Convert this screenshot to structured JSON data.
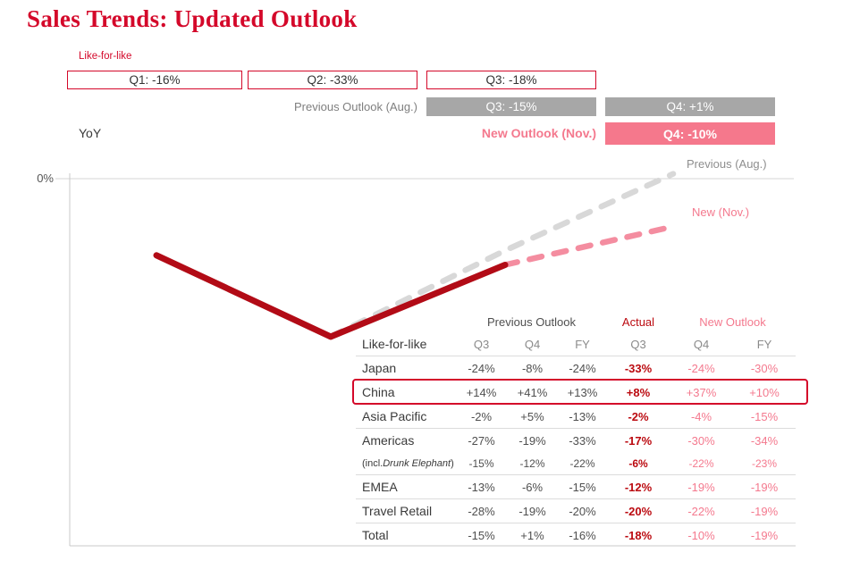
{
  "colors": {
    "brand_red": "#d4082a",
    "dark_red": "#bb0a10",
    "pink": "#f4798e",
    "pink_fill": "#f5788c",
    "gray_fill": "#a7a7a7",
    "gray_text": "#7f7f7f",
    "text_dark": "#3a3a3a",
    "text_mid": "#4f4f4f",
    "sep_gray": "#dcdcdc"
  },
  "slide": {
    "title": "Sales Trends: Updated Outlook"
  },
  "header": {
    "like_for_like_label": "Like-for-like",
    "yoy_label": "YoY",
    "actual_boxes": [
      {
        "label": "Q1: -16%"
      },
      {
        "label": "Q2: -33%"
      },
      {
        "label": "Q3: -18%"
      }
    ],
    "previous_outlook_label": "Previous Outlook (Aug.)",
    "previous_outlook_boxes": [
      {
        "label": "Q3: -15%"
      },
      {
        "label": "Q4: +1%"
      }
    ],
    "new_outlook_label": "New Outlook (Nov.)",
    "new_outlook_boxes": [
      {
        "label": "Q4: -10%"
      }
    ]
  },
  "chart": {
    "y_zero_label": "0%",
    "previous_annotation": "Previous (Aug.)",
    "new_annotation": "New (Nov.)"
  },
  "chart_data": {
    "type": "line",
    "x_categories": [
      "Q1",
      "Q2",
      "Q3",
      "Q4"
    ],
    "y_unit": "%",
    "y_axis": {
      "zero_label": "0%",
      "range": [
        -40,
        2
      ]
    },
    "legend_position": "inline-right",
    "grid": false,
    "series": [
      {
        "id": "previous-outlook",
        "name": "Previous (Aug.)",
        "dashed": true,
        "color": "#d8d8d8",
        "width": 6.5,
        "points": [
          {
            "x": "Q2",
            "value": -33
          },
          {
            "x": "Q3",
            "value": -15
          },
          {
            "x": "Q4",
            "value": 1
          }
        ]
      },
      {
        "id": "new-outlook",
        "name": "New (Nov.)",
        "dashed": true,
        "color": "#f48da0",
        "width": 6.5,
        "points": [
          {
            "x": "Q3",
            "value": -18
          },
          {
            "x": "Q4",
            "value": -10
          }
        ]
      },
      {
        "id": "actual",
        "name": "Actual like-for-like",
        "dashed": false,
        "color": "#b20b16",
        "width": 7,
        "points": [
          {
            "x": "Q1",
            "value": -16
          },
          {
            "x": "Q2",
            "value": -33
          },
          {
            "x": "Q3",
            "value": -18
          }
        ]
      }
    ]
  },
  "table": {
    "group_headers": {
      "previous": "Previous Outlook",
      "actual": "Actual",
      "new": "New Outlook"
    },
    "row_header_label": "Like-for-like",
    "col_headers": [
      "Q3",
      "Q4",
      "FY",
      "Q3",
      "Q4",
      "FY"
    ],
    "rows": [
      {
        "label": "Japan",
        "values": [
          "-24%",
          "-8%",
          "-24%",
          "-33%",
          "-24%",
          "-30%"
        ],
        "highlight": false
      },
      {
        "label": "China",
        "values": [
          "+14%",
          "+41%",
          "+13%",
          "+8%",
          "+37%",
          "+10%"
        ],
        "highlight": true
      },
      {
        "label": "Asia Pacific",
        "values": [
          "-2%",
          "+5%",
          "-13%",
          "-2%",
          "-4%",
          "-15%"
        ],
        "highlight": false
      },
      {
        "label": "Americas",
        "values": [
          "-27%",
          "-19%",
          "-33%",
          "-17%",
          "-30%",
          "-34%"
        ],
        "highlight": false
      },
      {
        "label_parts": {
          "prefix": "(incl. ",
          "italic": "Drunk Elephant",
          "suffix": ")"
        },
        "values": [
          "-15%",
          "-12%",
          "-22%",
          "-6%",
          "-22%",
          "-23%"
        ],
        "highlight": false,
        "sub": true
      },
      {
        "label": "EMEA",
        "values": [
          "-13%",
          "-6%",
          "-15%",
          "-12%",
          "-19%",
          "-19%"
        ],
        "highlight": false
      },
      {
        "label": "Travel Retail",
        "values": [
          "-28%",
          "-19%",
          "-20%",
          "-20%",
          "-22%",
          "-19%"
        ],
        "highlight": false
      },
      {
        "label": "Total",
        "values": [
          "-15%",
          "+1%",
          "-16%",
          "-18%",
          "-10%",
          "-19%"
        ],
        "highlight": false
      }
    ]
  }
}
